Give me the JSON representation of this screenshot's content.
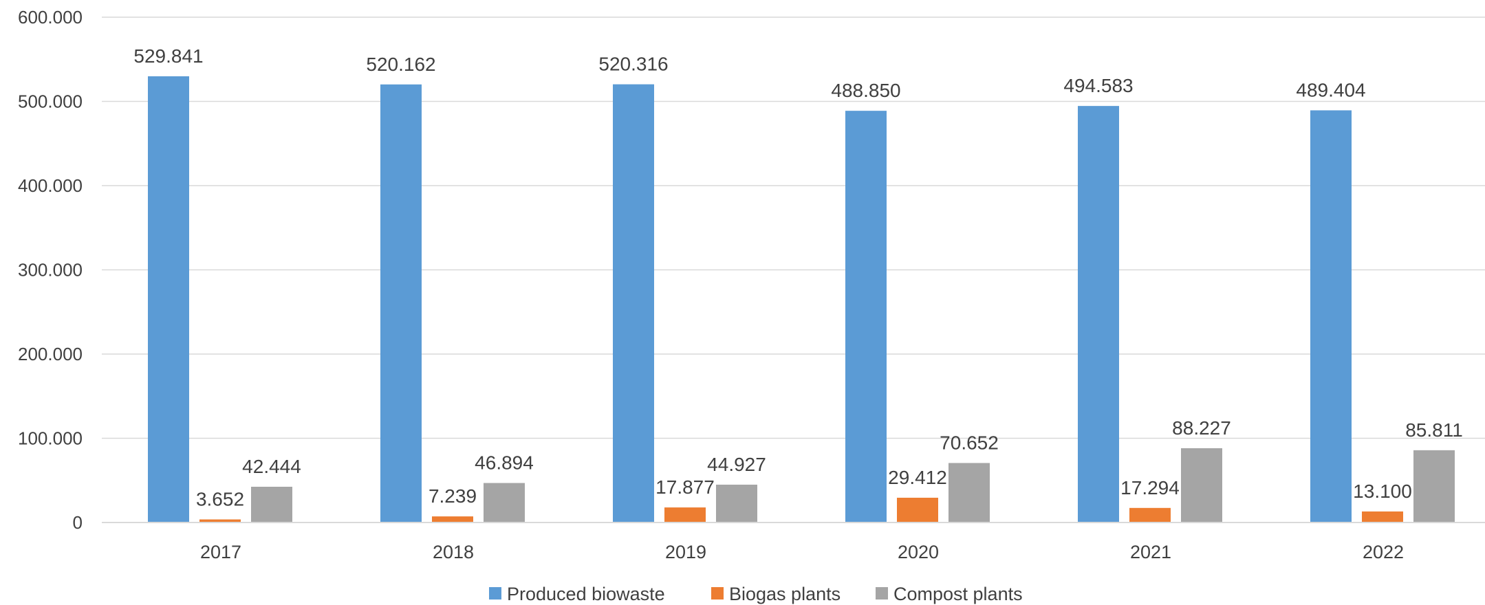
{
  "chart_data": {
    "type": "bar",
    "title": "",
    "xlabel": "",
    "ylabel": "",
    "ylim": [
      0,
      600000
    ],
    "y_ticks": [
      0,
      100000,
      200000,
      300000,
      400000,
      500000,
      600000
    ],
    "y_tick_labels": [
      "0",
      "100.000",
      "200.000",
      "300.000",
      "400.000",
      "500.000",
      "600.000"
    ],
    "grid": true,
    "legend_position": "bottom",
    "categories": [
      "2017",
      "2018",
      "2019",
      "2020",
      "2021",
      "2022"
    ],
    "series": [
      {
        "name": "Produced biowaste",
        "color": "#5B9BD5",
        "values": [
          529841,
          520162,
          520316,
          488850,
          494583,
          489404
        ],
        "labels": [
          "529.841",
          "520.162",
          "520.316",
          "488.850",
          "494.583",
          "489.404"
        ]
      },
      {
        "name": "Biogas plants",
        "color": "#ED7D31",
        "values": [
          3652,
          7239,
          17877,
          29412,
          17294,
          13100
        ],
        "labels": [
          "3.652",
          "7.239",
          "17.877",
          "29.412",
          "17.294",
          "13.100"
        ]
      },
      {
        "name": "Compost plants",
        "color": "#A5A5A5",
        "values": [
          42444,
          46894,
          44927,
          70652,
          88227,
          85811
        ],
        "labels": [
          "42.444",
          "46.894",
          "44.927",
          "70.652",
          "88.227",
          "85.811"
        ]
      }
    ]
  }
}
